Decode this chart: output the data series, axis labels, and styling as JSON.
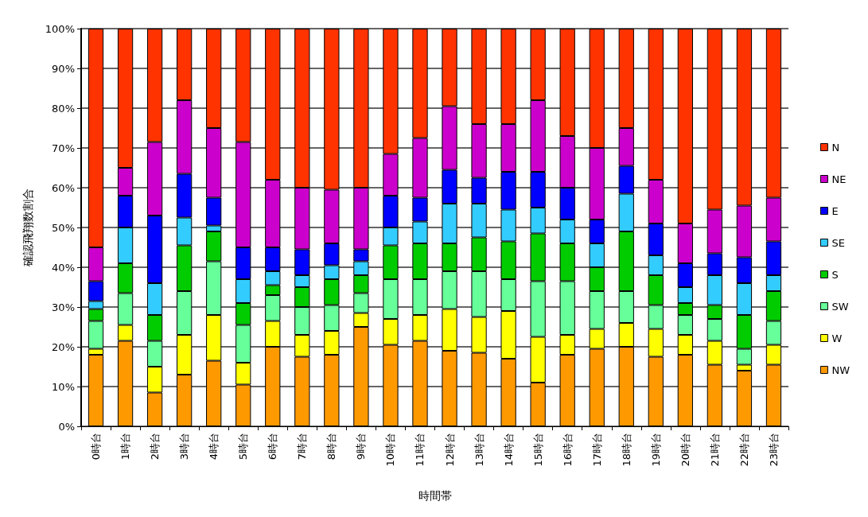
{
  "chart_data": {
    "type": "bar",
    "stacked": true,
    "xlabel": "時間帯",
    "ylabel": "確認飛翔数割合",
    "categories": [
      "0時台",
      "1時台",
      "2時台",
      "3時台",
      "4時台",
      "5時台",
      "6時台",
      "7時台",
      "8時台",
      "9時台",
      "10時台",
      "11時台",
      "12時台",
      "13時台",
      "14時台",
      "15時台",
      "16時台",
      "17時台",
      "18時台",
      "19時台",
      "20時台",
      "21時台",
      "22時台",
      "23時台"
    ],
    "ylim": [
      0,
      100
    ],
    "yticks": [
      {
        "value": 0,
        "label": "0%"
      },
      {
        "value": 10,
        "label": "10%"
      },
      {
        "value": 20,
        "label": "20%"
      },
      {
        "value": 30,
        "label": "30%"
      },
      {
        "value": 40,
        "label": "40%"
      },
      {
        "value": 50,
        "label": "50%"
      },
      {
        "value": 60,
        "label": "60%"
      },
      {
        "value": 70,
        "label": "70%"
      },
      {
        "value": 80,
        "label": "80%"
      },
      {
        "value": 90,
        "label": "90%"
      },
      {
        "value": 100,
        "label": "100%"
      }
    ],
    "grid": "y",
    "legend": "right",
    "series": [
      {
        "name": "NW",
        "color": "#ff9900",
        "values": [
          18,
          21.5,
          8.5,
          13,
          16.5,
          10.5,
          20,
          17.5,
          18,
          25,
          20.5,
          21.5,
          19,
          18.5,
          17,
          11,
          18,
          19.5,
          20,
          17.5,
          18,
          15.5,
          14,
          15.5
        ]
      },
      {
        "name": "W",
        "color": "#ffff00",
        "values": [
          1.5,
          4,
          6.5,
          10,
          11.5,
          5.5,
          6.5,
          5.5,
          6,
          3.5,
          6.5,
          6.5,
          10.5,
          9,
          12,
          11.5,
          5,
          5,
          6,
          7,
          5,
          6,
          1.5,
          5
        ]
      },
      {
        "name": "SW",
        "color": "#66ff99",
        "values": [
          7,
          8,
          6.5,
          11,
          13.5,
          9.5,
          6.5,
          7,
          6.5,
          5,
          10,
          9,
          9.5,
          11.5,
          8,
          14,
          13.5,
          9.5,
          8,
          6,
          5,
          5.5,
          4,
          6
        ]
      },
      {
        "name": "S",
        "color": "#00cc00",
        "values": [
          3,
          7.5,
          6.5,
          11.5,
          7.5,
          5.5,
          2.5,
          5,
          6.5,
          4.5,
          8.5,
          9,
          7,
          8.5,
          9.5,
          12,
          9.5,
          6,
          15,
          7.5,
          3,
          3.5,
          8.5,
          7.5
        ]
      },
      {
        "name": "SE",
        "color": "#33ccff",
        "values": [
          2,
          9,
          8,
          7,
          1.5,
          6,
          3.5,
          3,
          3.5,
          3.5,
          4.5,
          5.5,
          10,
          8.5,
          8,
          6.5,
          6,
          6,
          9.5,
          5,
          4,
          7.5,
          8,
          4
        ]
      },
      {
        "name": "E",
        "color": "#0000ff",
        "values": [
          5,
          8,
          17,
          11,
          7,
          8,
          6,
          6.5,
          5.5,
          3,
          8,
          6,
          8.5,
          6.5,
          9.5,
          9,
          8,
          6,
          7,
          8,
          6,
          5.5,
          6.5,
          8.5
        ]
      },
      {
        "name": "NE",
        "color": "#cc00cc",
        "values": [
          8.5,
          7,
          18.5,
          18.5,
          17.5,
          26.5,
          17,
          15.5,
          13.5,
          15.5,
          10.5,
          15,
          16,
          13.5,
          12,
          18,
          13,
          18,
          9.5,
          11,
          10,
          11,
          13,
          11
        ]
      },
      {
        "name": "N",
        "color": "#ff3300",
        "values": [
          55,
          35,
          28.5,
          18,
          25,
          28.5,
          38,
          40,
          40.5,
          40,
          31.5,
          27.5,
          19.5,
          24,
          24,
          18,
          27,
          30,
          25,
          38,
          49,
          45.5,
          44.5,
          42.5
        ]
      }
    ]
  }
}
